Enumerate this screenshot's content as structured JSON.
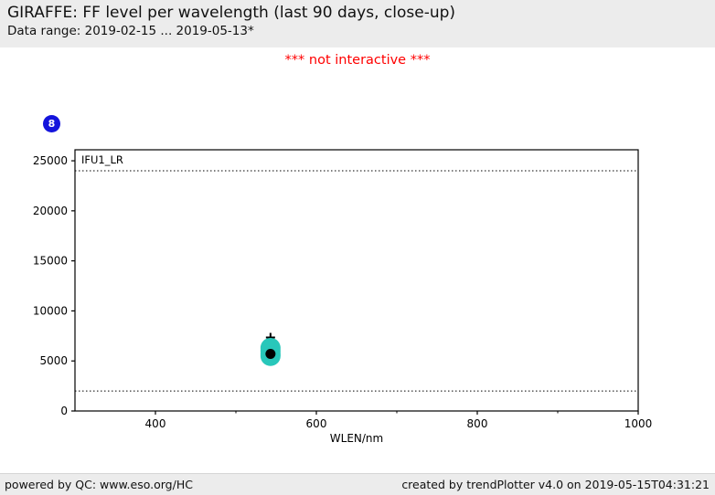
{
  "header": {
    "title": "GIRAFFE: FF level per wavelength (last 90 days, close-up)",
    "subtitle": "Data range: 2019-02-15 ... 2019-05-13*"
  },
  "notice": {
    "text": "*** not interactive ***"
  },
  "badge": {
    "label": "8"
  },
  "footer": {
    "left": "powered by QC: www.eso.org/HC",
    "right": "created by trendPlotter v4.0 on 2019-05-15T04:31:21"
  },
  "colors": {
    "header_bg": "#ececec",
    "footer_bg": "#ececec",
    "notice_red": "#ff0000",
    "badge_blue": "#1414dc",
    "marker_teal": "#28c7ba",
    "axis_ink": "#000000"
  },
  "chart_data": {
    "type": "scatter",
    "panel_label": "IFU1_LR",
    "xlabel": "WLEN/nm",
    "ylabel": "",
    "xlim": [
      300,
      1000
    ],
    "ylim": [
      0,
      26100
    ],
    "x_major_ticks": [
      400,
      600,
      800,
      1000
    ],
    "x_minor_ticks": [
      500,
      700,
      900
    ],
    "y_major_ticks": [
      0,
      5000,
      10000,
      15000,
      20000,
      25000
    ],
    "grid": false,
    "threshold_lines": [
      {
        "name": "upper-limit",
        "y": 24000
      },
      {
        "name": "lower-limit",
        "y": 2000
      }
    ],
    "series": [
      {
        "name": "outlier-plus",
        "marker": "plus",
        "color": "#000000",
        "points": [
          {
            "x": 543,
            "y": 7350
          }
        ]
      },
      {
        "name": "ff-level-cluster",
        "marker": "circle-large",
        "color": "#28c7ba",
        "points": [
          {
            "x": 543,
            "y": 6300
          },
          {
            "x": 543,
            "y": 6000
          },
          {
            "x": 543,
            "y": 5700
          },
          {
            "x": 543,
            "y": 5500
          }
        ]
      },
      {
        "name": "latest-value",
        "marker": "dot",
        "color": "#000000",
        "points": [
          {
            "x": 543,
            "y": 5700
          }
        ]
      }
    ]
  }
}
